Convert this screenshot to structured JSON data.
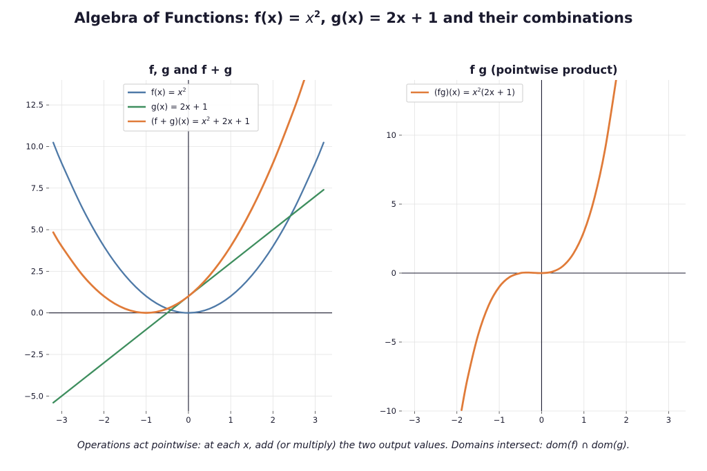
{
  "page": {
    "title_parts": {
      "lead": "Algebra of Functions:  f(x) = ",
      "var": "x",
      "exp": "2",
      "tail": ",  g(x) = 2x + 1  and their combinations"
    },
    "caption": "Operations act pointwise: at each x, add (or multiply) the two output values. Domains intersect: dom(f) ∩ dom(g)."
  },
  "colors": {
    "f": "#4e79a7",
    "g": "#3e8e5e",
    "sum": "#e07b39",
    "product": "#e07b39",
    "axis": "#1a1a2e",
    "grid": "#e3e3e3"
  },
  "chart_data": [
    {
      "type": "line",
      "title": "f, g and f + g",
      "xlim": [
        -3.3,
        3.4
      ],
      "ylim": [
        -5.9,
        14
      ],
      "x_ticks": [
        -3,
        -2,
        -1,
        0,
        1,
        2,
        3
      ],
      "x_tick_labels": [
        "−3",
        "−2",
        "−1",
        "0",
        "1",
        "2",
        "3"
      ],
      "y_ticks": [
        -5,
        -2.5,
        0,
        2.5,
        5,
        7.5,
        10,
        12.5
      ],
      "y_tick_labels": [
        "−5.0",
        "−2.5",
        "0.0",
        "2.5",
        "5.0",
        "7.5",
        "10.0",
        "12.5"
      ],
      "grid": true,
      "legend_position": "top-center",
      "series": [
        {
          "name": "f(x) = x²",
          "legend": {
            "pre": "f(x) = ",
            "var": "x",
            "sup": "2",
            "post": ""
          },
          "color_key": "f",
          "x": [
            -3.2,
            -3.0,
            -2.5,
            -2.0,
            -1.5,
            -1.0,
            -0.5,
            0.0,
            0.5,
            1.0,
            1.5,
            2.0,
            2.5,
            3.0,
            3.2
          ],
          "y": [
            10.24,
            9.0,
            6.25,
            4.0,
            2.25,
            1.0,
            0.25,
            0.0,
            0.25,
            1.0,
            2.25,
            4.0,
            6.25,
            9.0,
            10.24
          ]
        },
        {
          "name": "g(x) = 2x + 1",
          "legend": {
            "pre": "g(x) = 2x + 1",
            "var": "",
            "sup": "",
            "post": ""
          },
          "color_key": "g",
          "x": [
            -3.2,
            3.2
          ],
          "y": [
            -5.4,
            7.4
          ]
        },
        {
          "name": "(f + g)(x) = x² + 2x + 1",
          "legend": {
            "pre": "(f + g)(x) = ",
            "var": "x",
            "sup": "2",
            "post": " + 2x + 1"
          },
          "color_key": "sum",
          "x": [
            -3.2,
            -3.0,
            -2.5,
            -2.0,
            -1.5,
            -1.0,
            -0.5,
            0.0,
            0.5,
            1.0,
            1.5,
            2.0,
            2.5,
            2.74
          ],
          "y": [
            4.84,
            4.0,
            2.25,
            1.0,
            0.25,
            0.0,
            0.25,
            1.0,
            2.25,
            4.0,
            6.25,
            9.0,
            12.25,
            14.0
          ]
        }
      ]
    },
    {
      "type": "line",
      "title": "f g  (pointwise product)",
      "xlim": [
        -3.3,
        3.4
      ],
      "ylim": [
        -10,
        14
      ],
      "x_ticks": [
        -3,
        -2,
        -1,
        0,
        1,
        2,
        3
      ],
      "x_tick_labels": [
        "−3",
        "−2",
        "−1",
        "0",
        "1",
        "2",
        "3"
      ],
      "y_ticks": [
        -10,
        -5,
        0,
        5,
        10
      ],
      "y_tick_labels": [
        "−10",
        "−5",
        "0",
        "5",
        "10"
      ],
      "grid": true,
      "legend_position": "top-left",
      "series": [
        {
          "name": "(fg)(x) = x²(2x + 1)",
          "legend": {
            "pre": "(fg)(x) = ",
            "var": "x",
            "sup": "2",
            "post": "(2x + 1)"
          },
          "color_key": "product",
          "x": [
            -1.89,
            -1.75,
            -1.5,
            -1.25,
            -1.0,
            -0.75,
            -0.5,
            -0.333,
            -0.25,
            0.0,
            0.25,
            0.5,
            0.75,
            1.0,
            1.25,
            1.5,
            1.78
          ],
          "y": [
            -9.93,
            -7.66,
            -4.5,
            -2.34,
            -1.0,
            -0.28,
            0.0,
            0.037,
            0.031,
            0.0,
            0.094,
            0.5,
            1.41,
            3.0,
            5.47,
            9.0,
            14.42
          ]
        }
      ]
    }
  ]
}
